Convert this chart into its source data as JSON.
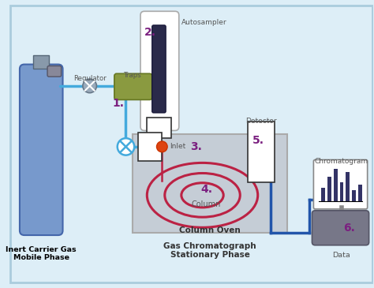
{
  "bg_color": "#ddeef7",
  "purple": "#7b2080",
  "blue": "#2255aa",
  "light_blue": "#44aadd",
  "red": "#bb2244",
  "dark_gray": "#555555",
  "mid_gray": "#888888",
  "oven_gray": "#c5cdd6",
  "olive": "#8a9a40",
  "cyl_color": "#7799cc",
  "cyl_edge": "#4466aa",
  "white": "#ffffff",
  "labels": [
    "1.",
    "2.",
    "3.",
    "4.",
    "5.",
    "6."
  ],
  "component_labels": {
    "regulator": "Regulator",
    "traps": "Traps",
    "autosampler": "Autosampler",
    "inlet": "Inlet",
    "column": "Column",
    "column_oven": "Column Oven",
    "detector": "Detector",
    "chromatogram": "Chromatogram",
    "data": "Data",
    "gc_label": "Gas Chromatograph\nStationary Phase",
    "carrier_gas": "Inert Carrier Gas\nMobile Phase"
  }
}
